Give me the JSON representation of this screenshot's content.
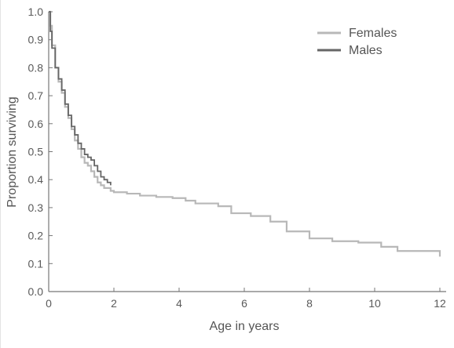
{
  "chart_data": {
    "type": "line",
    "title": "",
    "xlabel": "Age in years",
    "ylabel": "Proportion surviving",
    "xlim": [
      0,
      12
    ],
    "ylim": [
      0,
      1
    ],
    "x_ticks": [
      "0",
      "2",
      "4",
      "6",
      "8",
      "10",
      "12"
    ],
    "y_ticks": [
      "0.0",
      "0.1",
      "0.2",
      "0.3",
      "0.4",
      "0.5",
      "0.6",
      "0.7",
      "0.8",
      "0.9",
      "1.0"
    ],
    "grid": false,
    "legend_position": "top-right",
    "series": [
      {
        "name": "Females",
        "color": "#b8b8b8",
        "x": [
          0,
          0.05,
          0.1,
          0.2,
          0.3,
          0.4,
          0.5,
          0.6,
          0.7,
          0.8,
          0.9,
          1.0,
          1.1,
          1.2,
          1.3,
          1.4,
          1.5,
          1.6,
          1.7,
          1.8,
          1.9,
          2.0,
          2.4,
          2.8,
          3.3,
          3.8,
          4.2,
          4.5,
          5.2,
          5.6,
          6.2,
          6.8,
          7.3,
          8.0,
          8.7,
          9.5,
          10.2,
          10.7,
          12.0
        ],
        "y": [
          1.0,
          0.95,
          0.88,
          0.8,
          0.75,
          0.71,
          0.66,
          0.62,
          0.58,
          0.54,
          0.51,
          0.48,
          0.46,
          0.45,
          0.43,
          0.41,
          0.39,
          0.38,
          0.37,
          0.37,
          0.36,
          0.355,
          0.35,
          0.343,
          0.338,
          0.334,
          0.325,
          0.315,
          0.305,
          0.28,
          0.27,
          0.25,
          0.215,
          0.19,
          0.18,
          0.175,
          0.16,
          0.145,
          0.125
        ]
      },
      {
        "name": "Males",
        "color": "#666666",
        "x": [
          0,
          0.05,
          0.1,
          0.2,
          0.3,
          0.4,
          0.5,
          0.6,
          0.7,
          0.8,
          0.9,
          1.0,
          1.1,
          1.2,
          1.3,
          1.4,
          1.5,
          1.6,
          1.7,
          1.8,
          1.9
        ],
        "y": [
          1.0,
          0.93,
          0.87,
          0.8,
          0.76,
          0.72,
          0.67,
          0.63,
          0.59,
          0.56,
          0.53,
          0.51,
          0.49,
          0.48,
          0.47,
          0.45,
          0.43,
          0.41,
          0.4,
          0.39,
          0.38
        ]
      }
    ]
  }
}
